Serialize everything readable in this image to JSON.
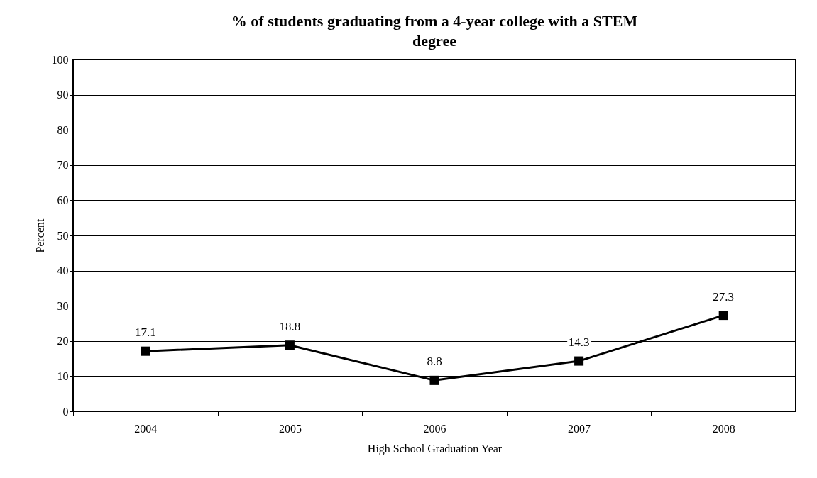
{
  "chart_data": {
    "type": "line",
    "title": "% of students graduating from a 4-year college with a STEM degree",
    "xlabel": "High School Graduation Year",
    "ylabel": "Percent",
    "categories": [
      "2004",
      "2005",
      "2006",
      "2007",
      "2008"
    ],
    "series": [
      {
        "color": "#000000",
        "values": [
          17.1,
          18.8,
          8.8,
          14.3,
          27.3
        ]
      }
    ],
    "ylim": [
      0,
      100
    ],
    "yticks": [
      0,
      10,
      20,
      30,
      40,
      50,
      60,
      70,
      80,
      90,
      100
    ],
    "grid": "y",
    "marker": "square",
    "line_style": "solid",
    "data_labels": true
  }
}
